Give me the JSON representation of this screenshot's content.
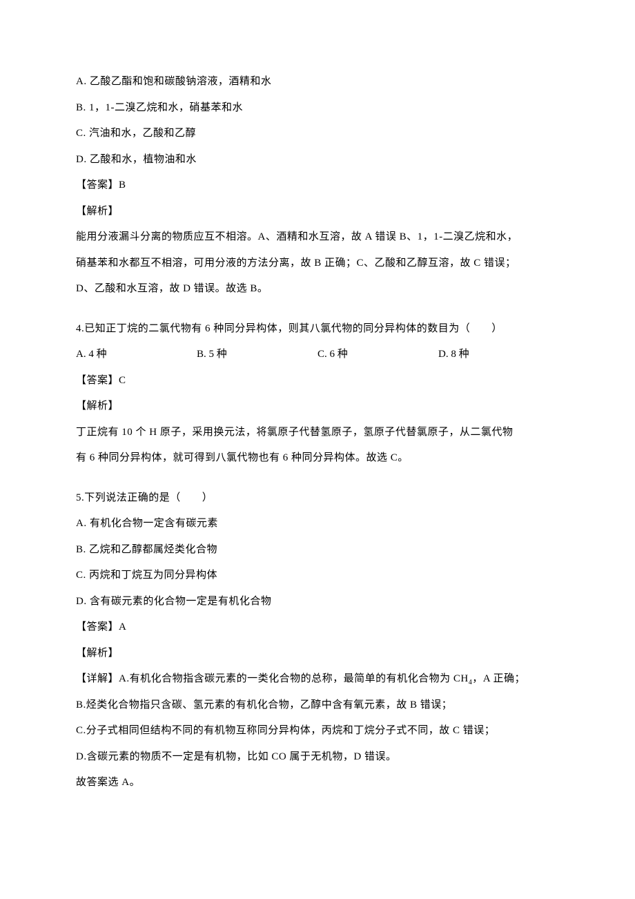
{
  "q3": {
    "opt_a": "A. 乙酸乙酯和饱和碳酸钠溶液，酒精和水",
    "opt_b": "B. 1，1-二溴乙烷和水，硝基苯和水",
    "opt_c": "C. 汽油和水，乙酸和乙醇",
    "opt_d": "D. 乙酸和水，植物油和水",
    "answer_label": "【答案】B",
    "analysis_label": "【解析】",
    "analysis_text_1": "能用分液漏斗分离的物质应互不相溶。A、酒精和水互溶，故 A 错误 B、1，1-二溴乙烷和水，",
    "analysis_text_2": "硝基苯和水都互不相溶，可用分液的方法分离，故 B 正确；C、乙酸和乙醇互溶，故 C 错误；",
    "analysis_text_3": "D、乙酸和水互溶，故 D 错误。故选 B。"
  },
  "q4": {
    "stem": "4.已知正丁烷的二氯代物有 6 种同分异构体，则其八氯代物的同分异构体的数目为（　　）",
    "opt_a": "A. 4 种",
    "opt_b": "B. 5 种",
    "opt_c": "C. 6 种",
    "opt_d": "D. 8 种",
    "answer_label": "【答案】C",
    "analysis_label": "【解析】",
    "analysis_text_1": "丁正烷有 10 个 H 原子，采用换元法，将氯原子代替氢原子，氢原子代替氯原子，从二氯代物",
    "analysis_text_2": "有 6 种同分异构体，就可得到八氯代物也有 6 种同分异构体。故选 C。"
  },
  "q5": {
    "stem": "5.下列说法正确的是（　　）",
    "opt_a": "A. 有机化合物一定含有碳元素",
    "opt_b": "B. 乙烷和乙醇都属烃类化合物",
    "opt_c": "C. 丙烷和丁烷互为同分异构体",
    "opt_d": "D. 含有碳元素的化合物一定是有机化合物",
    "answer_label": "【答案】A",
    "analysis_label": "【解析】",
    "detail_label": "【详解】",
    "detail_a_prefix": "A.有机化合物指含碳元素的一类化合物的总称，最简单的有机化合物为 CH",
    "detail_a_sub": "4",
    "detail_a_suffix": "，A 正确；",
    "detail_b": "B.烃类化合物指只含碳、氢元素的有机化合物，乙醇中含有氧元素，故 B 错误；",
    "detail_c": "C.分子式相同但结构不同的有机物互称同分异构体，丙烷和丁烷分子式不同，故 C 错误；",
    "detail_d": "D.含碳元素的物质不一定是有机物，比如 CO 属于无机物，D 错误。",
    "conclusion": "故答案选 A。"
  }
}
